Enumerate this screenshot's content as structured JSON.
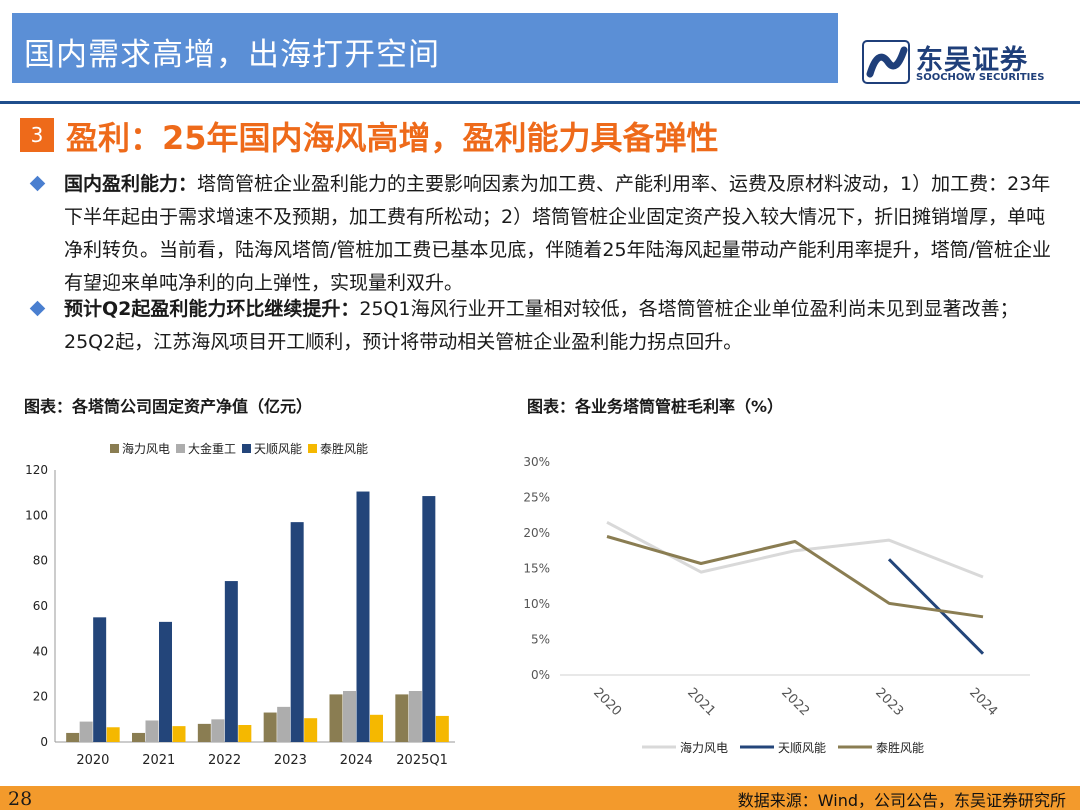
{
  "header": {
    "title": "国内需求高增，出海打开空间",
    "logo_cn": "东吴证券",
    "logo_en": "SOOCHOW SECURITIES"
  },
  "section": {
    "number": "3",
    "title": "盈利：25年国内海风高增，盈利能力具备弹性"
  },
  "bullets": [
    {
      "bold": "国内盈利能力：",
      "text": "塔筒管桩企业盈利能力的主要影响因素为加工费、产能利用率、运费及原材料波动，1）加工费：23年下半年起由于需求增速不及预期，加工费有所松动；2）塔筒管桩企业固定资产投入较大情况下，折旧摊销增厚，单吨净利转负。当前看，陆海风塔筒/管桩加工费已基本见底，伴随着25年陆海风起量带动产能利用率提升，塔筒/管桩企业有望迎来单吨净利的向上弹性，实现量利双升。"
    },
    {
      "bold": "预计Q2起盈利能力环比继续提升：",
      "text": "25Q1海风行业开工量相对较低，各塔筒管桩企业单位盈利尚未见到显著改善；25Q2起，江苏海风项目开工顺利，预计将带动相关管桩企业盈利能力拐点回升。"
    }
  ],
  "chart_captions": {
    "left": "图表：各塔筒公司固定资产净值（亿元）",
    "right": "图表：各业务塔筒管桩毛利率（%）"
  },
  "footer": {
    "page": "28",
    "source": "数据来源：Wind，公司公告，东吴证券研究所"
  },
  "chart_data": [
    {
      "type": "bar",
      "title": "图表：各塔筒公司固定资产净值（亿元）",
      "categories": [
        "2020",
        "2021",
        "2022",
        "2023",
        "2024",
        "2025Q1"
      ],
      "ylim": [
        0,
        120
      ],
      "yticks": [
        "0",
        "20",
        "40",
        "60",
        "80",
        "100",
        "120"
      ],
      "legend_position": "top",
      "series": [
        {
          "name": "海力风电",
          "color": "#8a7d52",
          "values": [
            4,
            4,
            8,
            13,
            21,
            21
          ]
        },
        {
          "name": "大金重工",
          "color": "#adadad",
          "values": [
            9,
            9.5,
            10,
            15.5,
            22.5,
            22.5
          ]
        },
        {
          "name": "天顺风能",
          "color": "#23457a",
          "values": [
            55,
            53,
            71,
            97,
            110.5,
            108.5
          ]
        },
        {
          "name": "泰胜风能",
          "color": "#f5b800",
          "values": [
            6.5,
            7,
            7.5,
            10.5,
            12,
            11.5
          ]
        }
      ]
    },
    {
      "type": "line",
      "title": "图表：各业务塔筒管桩毛利率（%）",
      "categories": [
        "2020",
        "2021",
        "2022",
        "2023",
        "2024"
      ],
      "ylim": [
        0,
        30
      ],
      "yticks": [
        "0%",
        "5%",
        "10%",
        "15%",
        "20%",
        "25%",
        "30%"
      ],
      "legend_position": "bottom",
      "series": [
        {
          "name": "海力风电",
          "color": "#d9d9d9",
          "values": [
            21.5,
            14.5,
            17.5,
            19,
            13.8
          ]
        },
        {
          "name": "天顺风能",
          "color": "#23457a",
          "values": [
            null,
            null,
            null,
            16.3,
            3
          ]
        },
        {
          "name": "泰胜风能",
          "color": "#8a7d52",
          "values": [
            19.5,
            15.7,
            18.8,
            10.1,
            8.2
          ]
        }
      ]
    }
  ]
}
